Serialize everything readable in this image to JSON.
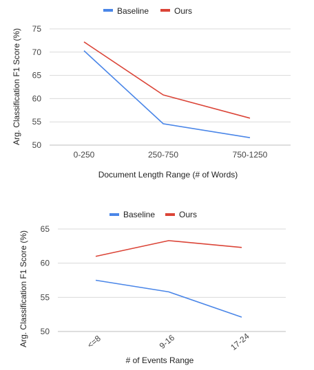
{
  "colors": {
    "baseline": "#4a86e8",
    "ours": "#db4437",
    "grid": "#d9d9d9",
    "axis": "#bdbdbd"
  },
  "chart_data": [
    {
      "type": "line",
      "title": "",
      "xlabel": "Document Length Range (# of Words)",
      "ylabel": "Arg. Classification F1 Score (%)",
      "categories": [
        "0-250",
        "250-750",
        "750-1250"
      ],
      "ylim": [
        50,
        75
      ],
      "yticks": [
        50,
        55,
        60,
        65,
        70,
        75
      ],
      "grid": true,
      "legend_position": "top",
      "series": [
        {
          "name": "Baseline",
          "values": [
            70.3,
            54.6,
            51.6
          ]
        },
        {
          "name": "Ours",
          "values": [
            72.2,
            60.8,
            55.8
          ]
        }
      ]
    },
    {
      "type": "line",
      "title": "",
      "xlabel": "# of Events Range",
      "ylabel": "Arg. Classification F1 Score (%)",
      "categories": [
        "<=8",
        "9-16",
        "17-24"
      ],
      "ylim": [
        50,
        65
      ],
      "yticks": [
        50,
        55,
        60,
        65
      ],
      "grid": true,
      "legend_position": "top",
      "tick_rotation": "rotated",
      "series": [
        {
          "name": "Baseline",
          "values": [
            57.5,
            55.8,
            52.1
          ]
        },
        {
          "name": "Ours",
          "values": [
            61.0,
            63.3,
            62.3
          ]
        }
      ]
    }
  ]
}
